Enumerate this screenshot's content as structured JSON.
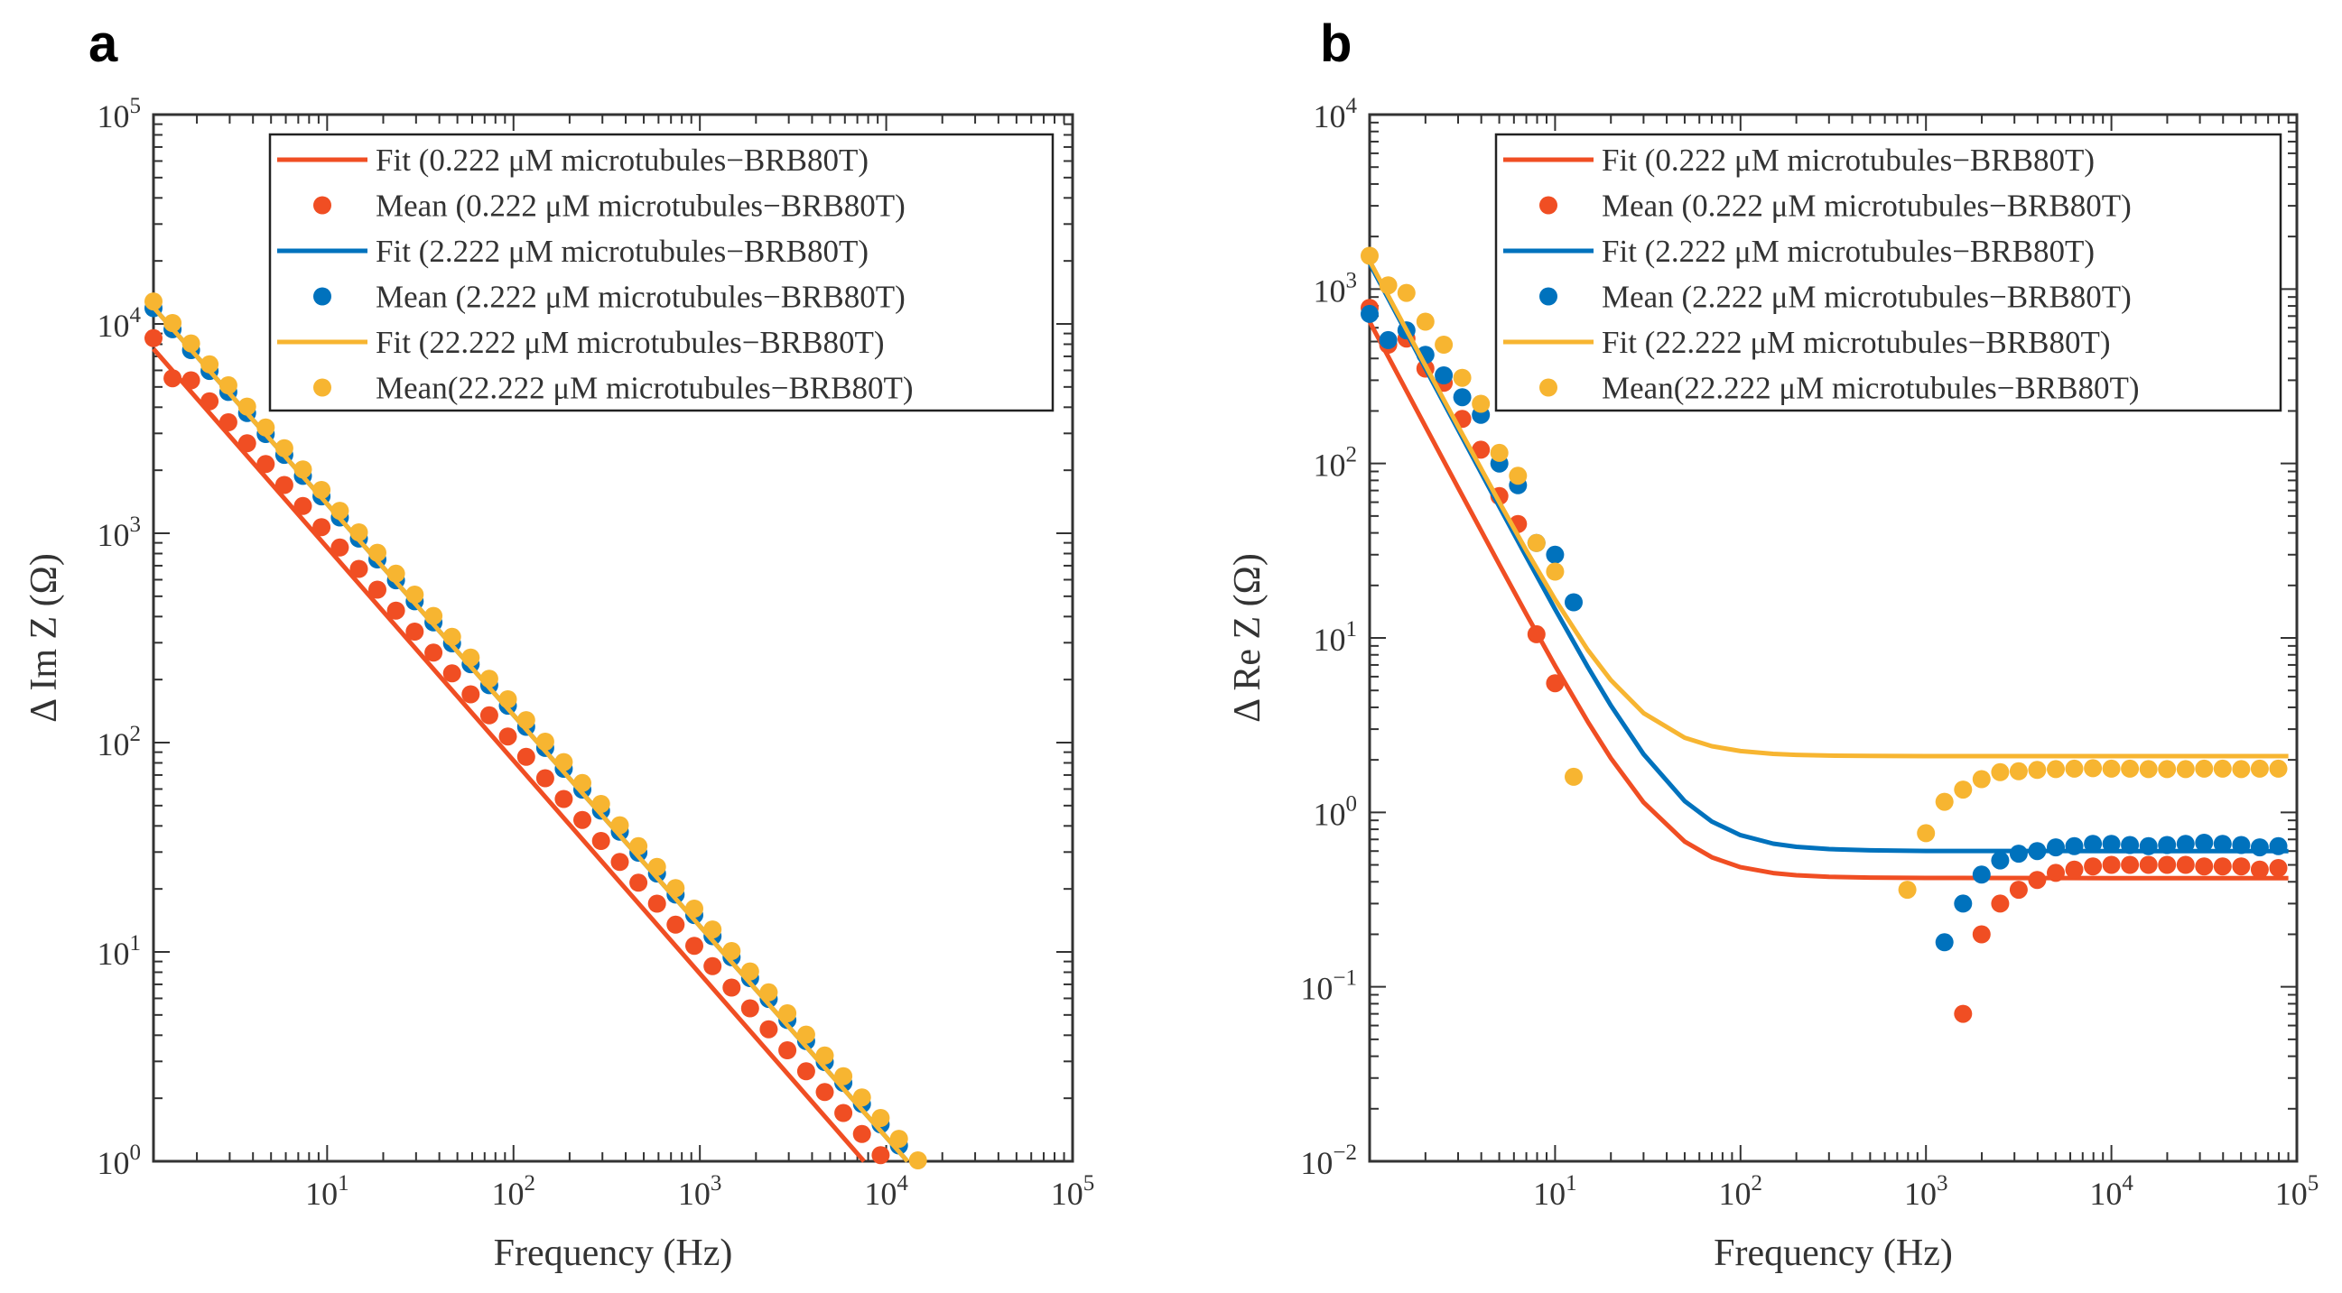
{
  "colors": {
    "red": "#F04E23",
    "blue": "#0072BD",
    "yellow": "#F7B531",
    "axis": "#333333"
  },
  "chart_data": [
    {
      "panel": "a",
      "type": "scatter",
      "scale": "log-log",
      "xlabel": "Frequency (Hz)",
      "ylabel": "Δ Im Z (Ω)",
      "xlim": [
        1.17,
        100000
      ],
      "ylim": [
        1,
        100000
      ],
      "tick_base": "10",
      "xtick_exponents": [
        1,
        2,
        3,
        4,
        5
      ],
      "ytick_exponents": [
        0,
        1,
        2,
        3,
        4,
        5
      ],
      "legend_position": "top-right",
      "legend": [
        "Fit (0.222 μM microtubules−BRB80T)",
        "Mean (0.222 μM microtubules−BRB80T)",
        "Fit (2.222 μM microtubules−BRB80T)",
        "Mean (2.222 μM microtubules−BRB80T)",
        "Fit (22.222 μM microtubules−BRB80T)",
        "Mean(22.222 μM microtubules−BRB80T)"
      ],
      "fits": [
        {
          "color": "red",
          "x": [
            1.17,
            7600
          ],
          "y": [
            7600,
            1
          ]
        },
        {
          "color": "blue",
          "x": [
            1.17,
            13000
          ],
          "y": [
            12000,
            1
          ]
        },
        {
          "color": "yellow",
          "x": [
            1.17,
            13000
          ],
          "y": [
            12000,
            1
          ]
        }
      ],
      "means": [
        {
          "color": "red",
          "x": [
            1.17,
            1.48,
            1.86,
            2.34,
            2.95,
            3.72,
            4.68,
            5.89,
            7.41,
            9.33,
            11.7,
            14.8,
            18.6,
            23.4,
            29.5,
            37.2,
            46.8,
            58.9,
            74.1,
            93.3,
            117,
            148,
            186,
            234,
            295,
            372,
            468,
            589,
            741,
            933,
            1170,
            1480,
            1860,
            2340,
            2950,
            3720,
            4680,
            5890,
            7410,
            9330
          ],
          "y": [
            8550,
            5500,
            5380,
            4270,
            3390,
            2690,
            2140,
            1700,
            1350,
            1070,
            855,
            676,
            538,
            427,
            339,
            269,
            214,
            170,
            135,
            107,
            85.5,
            67.6,
            53.8,
            42.7,
            33.9,
            26.9,
            21.4,
            17.0,
            13.5,
            10.7,
            8.55,
            6.76,
            5.38,
            4.27,
            3.39,
            2.69,
            2.14,
            1.7,
            1.35,
            1.07
          ]
        },
        {
          "color": "blue",
          "x": [
            1.17,
            1.48,
            1.86,
            2.34,
            2.95,
            3.72,
            4.68,
            5.89,
            7.41,
            9.33,
            11.7,
            14.8,
            18.6,
            23.4,
            29.5,
            37.2,
            46.8,
            58.9,
            74.1,
            93.3,
            117,
            148,
            186,
            234,
            295,
            372,
            468,
            589,
            741,
            933,
            1170,
            1480,
            1860,
            2340,
            2950,
            3720,
            4680,
            5890,
            7410,
            9330,
            11700
          ],
          "y": [
            11900,
            9430,
            7500,
            5960,
            4730,
            3750,
            2980,
            2370,
            1880,
            1500,
            1190,
            943,
            750,
            596,
            473,
            375,
            298,
            237,
            188,
            150,
            119,
            94.3,
            75.0,
            59.6,
            47.3,
            37.5,
            29.8,
            23.7,
            18.8,
            15.0,
            11.9,
            9.43,
            7.5,
            5.96,
            4.73,
            3.75,
            2.98,
            2.37,
            1.88,
            1.5,
            1.19
          ]
        },
        {
          "color": "yellow",
          "x": [
            1.17,
            1.48,
            1.86,
            2.34,
            2.95,
            3.72,
            4.68,
            5.89,
            7.41,
            9.33,
            11.7,
            14.8,
            18.6,
            23.4,
            29.5,
            37.2,
            46.8,
            58.9,
            74.1,
            93.3,
            117,
            148,
            186,
            234,
            295,
            372,
            468,
            589,
            741,
            933,
            1170,
            1480,
            1860,
            2340,
            2950,
            3720,
            4680,
            5890,
            7410,
            9330,
            11700,
            14800
          ],
          "y": [
            12800,
            10100,
            8070,
            6410,
            5090,
            4030,
            3200,
            2550,
            2020,
            1610,
            1280,
            1010,
            807,
            641,
            509,
            403,
            320,
            255,
            202,
            161,
            128,
            101,
            80.7,
            64.1,
            50.9,
            40.3,
            32.0,
            25.5,
            20.2,
            16.1,
            12.8,
            10.1,
            8.07,
            6.41,
            5.09,
            4.03,
            3.2,
            2.55,
            2.02,
            1.61,
            1.28,
            1.01
          ]
        }
      ]
    },
    {
      "panel": "b",
      "type": "scatter",
      "scale": "log-log",
      "xlabel": "Frequency (Hz)",
      "ylabel": "Δ Re Z (Ω)",
      "xlim": [
        1,
        100000
      ],
      "ylim": [
        0.01,
        10000
      ],
      "tick_base": "10",
      "xtick_exponents": [
        1,
        2,
        3,
        4,
        5
      ],
      "ytick_exponents": [
        -2,
        -1,
        0,
        1,
        2,
        3,
        4
      ],
      "legend_position": "top-right",
      "legend": [
        "Fit (0.222 μM microtubules−BRB80T)",
        "Mean (0.222 μM microtubules−BRB80T)",
        "Fit (2.222 μM microtubules−BRB80T)",
        "Mean (2.222 μM microtubules−BRB80T)",
        "Fit (22.222 μM microtubules−BRB80T)",
        "Mean(22.222 μM microtubules−BRB80T)"
      ],
      "fits": [
        {
          "color": "red",
          "x": [
            1,
            1.5,
            2,
            3,
            5,
            7,
            10,
            15,
            20,
            30,
            50,
            70,
            100,
            150,
            200,
            300,
            500,
            1000,
            10000,
            90000
          ],
          "y": [
            650.4,
            289.3,
            162.9,
            72.6,
            26.4,
            13.68,
            6.92,
            3.31,
            2.045,
            1.142,
            0.68,
            0.553,
            0.485,
            0.449,
            0.436,
            0.427,
            0.423,
            0.421,
            0.42,
            0.42
          ]
        },
        {
          "color": "blue",
          "x": [
            1,
            1.5,
            2,
            3,
            5,
            7,
            10,
            15,
            20,
            30,
            50,
            70,
            100,
            150,
            200,
            300,
            500,
            1000,
            10000,
            90000
          ],
          "y": [
            1400.6,
            622.8,
            350.6,
            156.2,
            56.6,
            29.17,
            14.6,
            6.82,
            4.1,
            2.156,
            1.16,
            0.886,
            0.74,
            0.662,
            0.635,
            0.616,
            0.606,
            0.601,
            0.6,
            0.6
          ]
        },
        {
          "color": "yellow",
          "x": [
            1,
            1.5,
            2,
            3,
            5,
            7,
            10,
            15,
            20,
            30,
            50,
            70,
            100,
            150,
            200,
            300,
            500,
            1000,
            10000,
            90000
          ],
          "y": [
            1452.1,
            646.5,
            364.6,
            163.2,
            60.1,
            31.7,
            16.6,
            8.54,
            5.725,
            3.71,
            2.68,
            2.396,
            2.245,
            2.164,
            2.136,
            2.116,
            2.106,
            2.101,
            2.1,
            2.1
          ]
        }
      ],
      "means": [
        {
          "color": "red",
          "x": [
            1,
            1.26,
            1.58,
            2,
            2.51,
            3.16,
            3.98,
            5.01,
            6.31,
            7.94,
            10,
            1585,
            1995,
            2512,
            3162,
            3981,
            5012,
            6310,
            7943,
            10000,
            12589,
            15849,
            19953,
            25119,
            31623,
            39811,
            50119,
            63096,
            79433
          ],
          "y": [
            780,
            480,
            520,
            350,
            290,
            180,
            120,
            65,
            45,
            10.5,
            5.5,
            0.07,
            0.2,
            0.3,
            0.36,
            0.41,
            0.45,
            0.47,
            0.49,
            0.5,
            0.5,
            0.5,
            0.5,
            0.5,
            0.49,
            0.49,
            0.49,
            0.47,
            0.48
          ]
        },
        {
          "color": "blue",
          "x": [
            1,
            1.26,
            1.58,
            2,
            2.51,
            3.16,
            3.98,
            5.01,
            6.31,
            7.94,
            10,
            12.6,
            1259,
            1585,
            1995,
            2512,
            3162,
            3981,
            5012,
            6310,
            7943,
            10000,
            12589,
            15849,
            19953,
            25119,
            31623,
            39811,
            50119,
            63096,
            79433
          ],
          "y": [
            720,
            510,
            580,
            420,
            320,
            240,
            190,
            100,
            75,
            35,
            30,
            16,
            0.18,
            0.3,
            0.44,
            0.53,
            0.58,
            0.6,
            0.63,
            0.64,
            0.66,
            0.66,
            0.65,
            0.64,
            0.65,
            0.66,
            0.67,
            0.66,
            0.65,
            0.63,
            0.64
          ]
        },
        {
          "color": "yellow",
          "x": [
            1,
            1.26,
            1.58,
            2,
            2.51,
            3.16,
            3.98,
            5.01,
            6.31,
            7.94,
            10,
            12.6,
            794,
            1000,
            1259,
            1585,
            1995,
            2512,
            3162,
            3981,
            5012,
            6310,
            7943,
            10000,
            12589,
            15849,
            19953,
            25119,
            31623,
            39811,
            50119,
            63096,
            79433
          ],
          "y": [
            1550,
            1050,
            950,
            650,
            480,
            310,
            220,
            115,
            85,
            35,
            24,
            1.6,
            0.36,
            0.76,
            1.15,
            1.35,
            1.55,
            1.7,
            1.72,
            1.75,
            1.77,
            1.78,
            1.79,
            1.78,
            1.78,
            1.77,
            1.77,
            1.77,
            1.78,
            1.78,
            1.77,
            1.78,
            1.78
          ]
        }
      ]
    }
  ]
}
